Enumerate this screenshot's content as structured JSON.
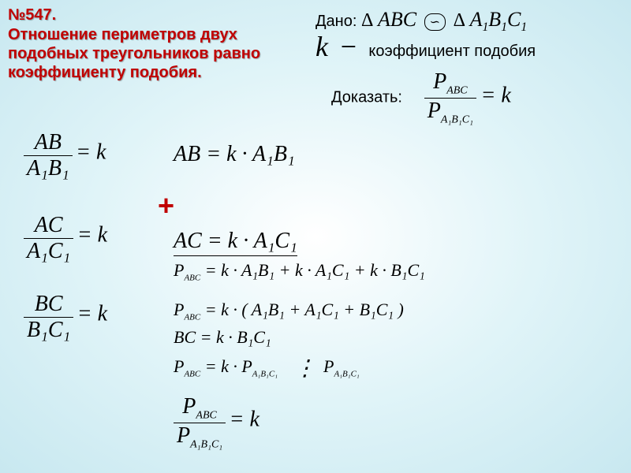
{
  "header": {
    "problem_number": "№547.",
    "theorem_text": "Отношение периметров двух подобных треугольников равно коэффициенту подобия."
  },
  "given": {
    "label": "Дано:",
    "delta": "Δ",
    "tri1": "ABC",
    "similar": "∽",
    "tri2_A": "A",
    "tri2_B": "B",
    "tri2_C": "C",
    "sub": "1"
  },
  "k_def": {
    "k": "k",
    "dash": "−",
    "text": "коэффициент подобия"
  },
  "prove": {
    "label": "Доказать:",
    "P": "P",
    "ABC": "ABC",
    "A1B1C1": "A₁B₁C₁",
    "eq_k": "= k"
  },
  "left_eqs": {
    "AB": "AB",
    "A1B1": "A₁B₁",
    "AC": "AC",
    "A1C1": "A₁C₁",
    "BC": "BC",
    "B1C1": "B₁C₁",
    "eq_k": "= k"
  },
  "mid_eqs": {
    "eq1": "AB = k · A₁B₁",
    "eq2": "AC = k · A₁C₁",
    "eq3_lhs": "P",
    "eq3_sub": "ABC",
    "eq3_rhs": "= k · A₁B₁ + k · A₁C₁ + k · B₁C₁",
    "eq4_rhs": "= k · ( A₁B₁ + A₁C₁ + B₁C₁ )",
    "eq5_bc": "BC = k · B₁C₁",
    "eq5_lhs": "P",
    "eq5_rhs": "= k · P",
    "div": "÷ P",
    "final": "= k"
  },
  "style": {
    "accent_color": "#c00000",
    "bg_center": "#ffffff",
    "bg_edge": "#c8e8f0"
  }
}
